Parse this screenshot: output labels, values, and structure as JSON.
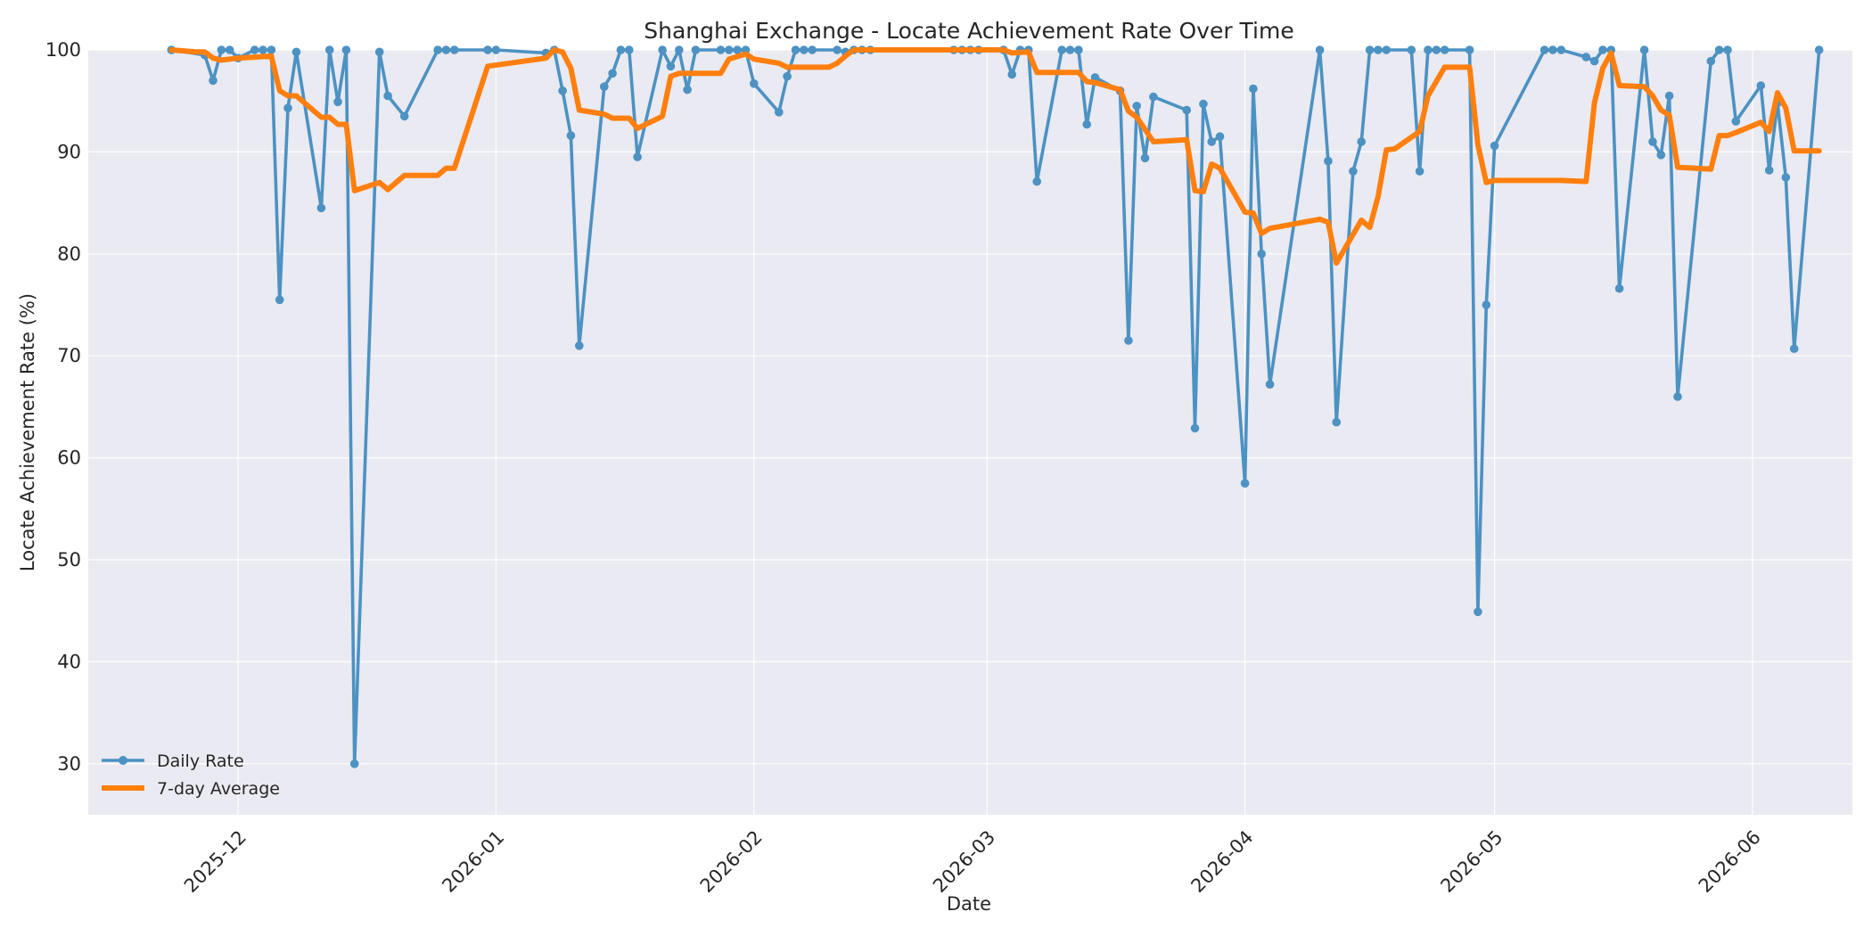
{
  "chart_data": {
    "type": "line",
    "title": "Shanghai Exchange - Locate Achievement Rate Over Time",
    "xlabel": "Date",
    "ylabel": "Locate Achievement Rate (%)",
    "xlim": [
      "2025-11-13",
      "2026-06-13"
    ],
    "ylim": [
      25,
      100
    ],
    "grid": true,
    "legend_position": "lower-left",
    "x_ticks": [
      "2025-12",
      "2026-01",
      "2026-02",
      "2026-03",
      "2026-04",
      "2026-05",
      "2026-06"
    ],
    "y_ticks": [
      30,
      40,
      50,
      60,
      70,
      80,
      90,
      100
    ],
    "colors": {
      "plot_bg": "#eaeaf2",
      "daily": "#4c92c3",
      "avg": "#ff7f0e",
      "grid": "#ffffff"
    },
    "series": [
      {
        "name": "Daily Rate",
        "style": "line-with-markers",
        "points": [
          [
            "2025-11-23",
            100
          ],
          [
            "2025-11-27",
            99.5
          ],
          [
            "2025-11-28",
            97
          ],
          [
            "2025-11-29",
            100
          ],
          [
            "2025-11-30",
            100
          ],
          [
            "2025-12-01",
            99.2
          ],
          [
            "2025-12-03",
            100
          ],
          [
            "2025-12-04",
            100
          ],
          [
            "2025-12-05",
            100
          ],
          [
            "2025-12-06",
            75.5
          ],
          [
            "2025-12-07",
            94.3
          ],
          [
            "2025-12-08",
            99.8
          ],
          [
            "2025-12-11",
            84.5
          ],
          [
            "2025-12-12",
            100
          ],
          [
            "2025-12-13",
            94.9
          ],
          [
            "2025-12-14",
            100
          ],
          [
            "2025-12-15",
            30
          ],
          [
            "2025-12-18",
            99.8
          ],
          [
            "2025-12-19",
            95.5
          ],
          [
            "2025-12-21",
            93.5
          ],
          [
            "2025-12-25",
            100
          ],
          [
            "2025-12-26",
            100
          ],
          [
            "2025-12-27",
            100
          ],
          [
            "2025-12-31",
            100
          ],
          [
            "2026-01-01",
            100
          ],
          [
            "2026-01-07",
            99.7
          ],
          [
            "2026-01-08",
            100
          ],
          [
            "2026-01-09",
            96
          ],
          [
            "2026-01-10",
            91.6
          ],
          [
            "2026-01-11",
            71
          ],
          [
            "2026-01-14",
            96.4
          ],
          [
            "2026-01-15",
            97.7
          ],
          [
            "2026-01-16",
            100
          ],
          [
            "2026-01-17",
            100
          ],
          [
            "2026-01-18",
            89.5
          ],
          [
            "2026-01-21",
            100
          ],
          [
            "2026-01-22",
            98.4
          ],
          [
            "2026-01-23",
            100
          ],
          [
            "2026-01-24",
            96.1
          ],
          [
            "2026-01-25",
            100
          ],
          [
            "2026-01-28",
            100
          ],
          [
            "2026-01-29",
            100
          ],
          [
            "2026-01-30",
            100
          ],
          [
            "2026-01-31",
            100
          ],
          [
            "2026-02-01",
            96.7
          ],
          [
            "2026-02-04",
            93.9
          ],
          [
            "2026-02-05",
            97.4
          ],
          [
            "2026-02-06",
            100
          ],
          [
            "2026-02-07",
            100
          ],
          [
            "2026-02-08",
            100
          ],
          [
            "2026-02-11",
            100
          ],
          [
            "2026-02-12",
            99.8
          ],
          [
            "2026-02-13",
            100
          ],
          [
            "2026-02-14",
            100
          ],
          [
            "2026-02-15",
            100
          ],
          [
            "2026-02-25",
            100
          ],
          [
            "2026-02-26",
            100
          ],
          [
            "2026-02-27",
            100
          ],
          [
            "2026-02-28",
            100
          ],
          [
            "2026-03-03",
            100
          ],
          [
            "2026-03-04",
            97.6
          ],
          [
            "2026-03-05",
            100
          ],
          [
            "2026-03-06",
            100
          ],
          [
            "2026-03-07",
            87.1
          ],
          [
            "2026-03-10",
            100
          ],
          [
            "2026-03-11",
            100
          ],
          [
            "2026-03-12",
            100
          ],
          [
            "2026-03-13",
            92.7
          ],
          [
            "2026-03-14",
            97.3
          ],
          [
            "2026-03-17",
            96
          ],
          [
            "2026-03-18",
            71.5
          ],
          [
            "2026-03-19",
            94.5
          ],
          [
            "2026-03-20",
            89.4
          ],
          [
            "2026-03-21",
            95.4
          ],
          [
            "2026-03-25",
            94.1
          ],
          [
            "2026-03-26",
            62.9
          ],
          [
            "2026-03-27",
            94.7
          ],
          [
            "2026-03-28",
            91
          ],
          [
            "2026-03-29",
            91.5
          ],
          [
            "2026-04-01",
            57.5
          ],
          [
            "2026-04-02",
            96.2
          ],
          [
            "2026-04-03",
            80
          ],
          [
            "2026-04-04",
            67.2
          ],
          [
            "2026-04-10",
            100
          ],
          [
            "2026-04-11",
            89.1
          ],
          [
            "2026-04-12",
            63.5
          ],
          [
            "2026-04-14",
            88.1
          ],
          [
            "2026-04-15",
            91
          ],
          [
            "2026-04-16",
            100
          ],
          [
            "2026-04-17",
            100
          ],
          [
            "2026-04-18",
            100
          ],
          [
            "2026-04-21",
            100
          ],
          [
            "2026-04-22",
            88.1
          ],
          [
            "2026-04-23",
            100
          ],
          [
            "2026-04-24",
            100
          ],
          [
            "2026-04-25",
            100
          ],
          [
            "2026-04-28",
            100
          ],
          [
            "2026-04-29",
            44.9
          ],
          [
            "2026-04-30",
            75
          ],
          [
            "2026-05-01",
            90.6
          ],
          [
            "2026-05-07",
            100
          ],
          [
            "2026-05-08",
            100
          ],
          [
            "2026-05-09",
            100
          ],
          [
            "2026-05-12",
            99.3
          ],
          [
            "2026-05-13",
            98.9
          ],
          [
            "2026-05-14",
            100
          ],
          [
            "2026-05-15",
            100
          ],
          [
            "2026-05-16",
            76.6
          ],
          [
            "2026-05-19",
            100
          ],
          [
            "2026-05-20",
            91
          ],
          [
            "2026-05-21",
            89.7
          ],
          [
            "2026-05-22",
            95.5
          ],
          [
            "2026-05-23",
            66
          ],
          [
            "2026-05-27",
            98.9
          ],
          [
            "2026-05-28",
            100
          ],
          [
            "2026-05-29",
            100
          ],
          [
            "2026-05-30",
            93
          ],
          [
            "2026-06-02",
            96.5
          ],
          [
            "2026-06-03",
            88.2
          ],
          [
            "2026-06-04",
            94.8
          ],
          [
            "2026-06-05",
            87.5
          ],
          [
            "2026-06-06",
            70.7
          ],
          [
            "2026-06-09",
            100
          ]
        ]
      },
      {
        "name": "7-day Average",
        "style": "line",
        "points": [
          [
            "2025-11-23",
            100
          ],
          [
            "2025-11-26",
            99.8
          ],
          [
            "2025-11-27",
            99.8
          ],
          [
            "2025-11-28",
            99.2
          ],
          [
            "2025-11-29",
            99
          ],
          [
            "2025-12-01",
            99.2
          ],
          [
            "2025-12-05",
            99.4
          ],
          [
            "2025-12-06",
            96
          ],
          [
            "2025-12-07",
            95.5
          ],
          [
            "2025-12-08",
            95.5
          ],
          [
            "2025-12-11",
            93.4
          ],
          [
            "2025-12-12",
            93.4
          ],
          [
            "2025-12-13",
            92.7
          ],
          [
            "2025-12-14",
            92.7
          ],
          [
            "2025-12-15",
            86.2
          ],
          [
            "2025-12-18",
            87
          ],
          [
            "2025-12-19",
            86.3
          ],
          [
            "2025-12-21",
            87.7
          ],
          [
            "2025-12-25",
            87.7
          ],
          [
            "2025-12-26",
            88.4
          ],
          [
            "2025-12-27",
            88.4
          ],
          [
            "2025-12-31",
            98.4
          ],
          [
            "2026-01-07",
            99.2
          ],
          [
            "2026-01-08",
            100
          ],
          [
            "2026-01-09",
            99.8
          ],
          [
            "2026-01-10",
            98.2
          ],
          [
            "2026-01-11",
            94.1
          ],
          [
            "2026-01-14",
            93.7
          ],
          [
            "2026-01-15",
            93.3
          ],
          [
            "2026-01-16",
            93.3
          ],
          [
            "2026-01-17",
            93.3
          ],
          [
            "2026-01-18",
            92.3
          ],
          [
            "2026-01-21",
            93.5
          ],
          [
            "2026-01-22",
            97.4
          ],
          [
            "2026-01-23",
            97.7
          ],
          [
            "2026-01-28",
            97.7
          ],
          [
            "2026-01-29",
            99.1
          ],
          [
            "2026-01-31",
            99.6
          ],
          [
            "2026-02-01",
            99.1
          ],
          [
            "2026-02-04",
            98.7
          ],
          [
            "2026-02-05",
            98.3
          ],
          [
            "2026-02-10",
            98.3
          ],
          [
            "2026-02-11",
            98.7
          ],
          [
            "2026-02-12",
            99.4
          ],
          [
            "2026-02-13",
            100
          ],
          [
            "2026-03-03",
            100
          ],
          [
            "2026-03-04",
            99.7
          ],
          [
            "2026-03-06",
            99.8
          ],
          [
            "2026-03-07",
            97.8
          ],
          [
            "2026-03-12",
            97.8
          ],
          [
            "2026-03-13",
            96.9
          ],
          [
            "2026-03-14",
            96.8
          ],
          [
            "2026-03-17",
            96.1
          ],
          [
            "2026-03-18",
            94
          ],
          [
            "2026-03-19",
            93.4
          ],
          [
            "2026-03-21",
            91
          ],
          [
            "2026-03-25",
            91.2
          ],
          [
            "2026-03-26",
            86.2
          ],
          [
            "2026-03-27",
            86.1
          ],
          [
            "2026-03-28",
            88.8
          ],
          [
            "2026-03-29",
            88.4
          ],
          [
            "2026-04-01",
            84.1
          ],
          [
            "2026-04-02",
            84
          ],
          [
            "2026-04-03",
            82
          ],
          [
            "2026-04-04",
            82.5
          ],
          [
            "2026-04-10",
            83.4
          ],
          [
            "2026-04-11",
            83.1
          ],
          [
            "2026-04-12",
            79.1
          ],
          [
            "2026-04-15",
            83.3
          ],
          [
            "2026-04-16",
            82.6
          ],
          [
            "2026-04-17",
            85.6
          ],
          [
            "2026-04-18",
            90.2
          ],
          [
            "2026-04-19",
            90.3
          ],
          [
            "2026-04-22",
            92
          ],
          [
            "2026-04-23",
            95.5
          ],
          [
            "2026-04-25",
            98.3
          ],
          [
            "2026-04-28",
            98.3
          ],
          [
            "2026-04-29",
            90.7
          ],
          [
            "2026-04-30",
            87
          ],
          [
            "2026-05-01",
            87.2
          ],
          [
            "2026-05-09",
            87.2
          ],
          [
            "2026-05-12",
            87.1
          ],
          [
            "2026-05-13",
            94.8
          ],
          [
            "2026-05-14",
            98.2
          ],
          [
            "2026-05-15",
            99.7
          ],
          [
            "2026-05-16",
            96.5
          ],
          [
            "2026-05-19",
            96.4
          ],
          [
            "2026-05-20",
            95.5
          ],
          [
            "2026-05-21",
            94.1
          ],
          [
            "2026-05-22",
            93.6
          ],
          [
            "2026-05-23",
            88.5
          ],
          [
            "2026-05-27",
            88.3
          ],
          [
            "2026-05-28",
            91.6
          ],
          [
            "2026-05-29",
            91.6
          ],
          [
            "2026-05-30",
            91.9
          ],
          [
            "2026-06-02",
            92.9
          ],
          [
            "2026-06-03",
            92
          ],
          [
            "2026-06-04",
            95.8
          ],
          [
            "2026-06-05",
            94.3
          ],
          [
            "2026-06-06",
            90.1
          ],
          [
            "2026-06-09",
            90.1
          ]
        ]
      }
    ]
  }
}
